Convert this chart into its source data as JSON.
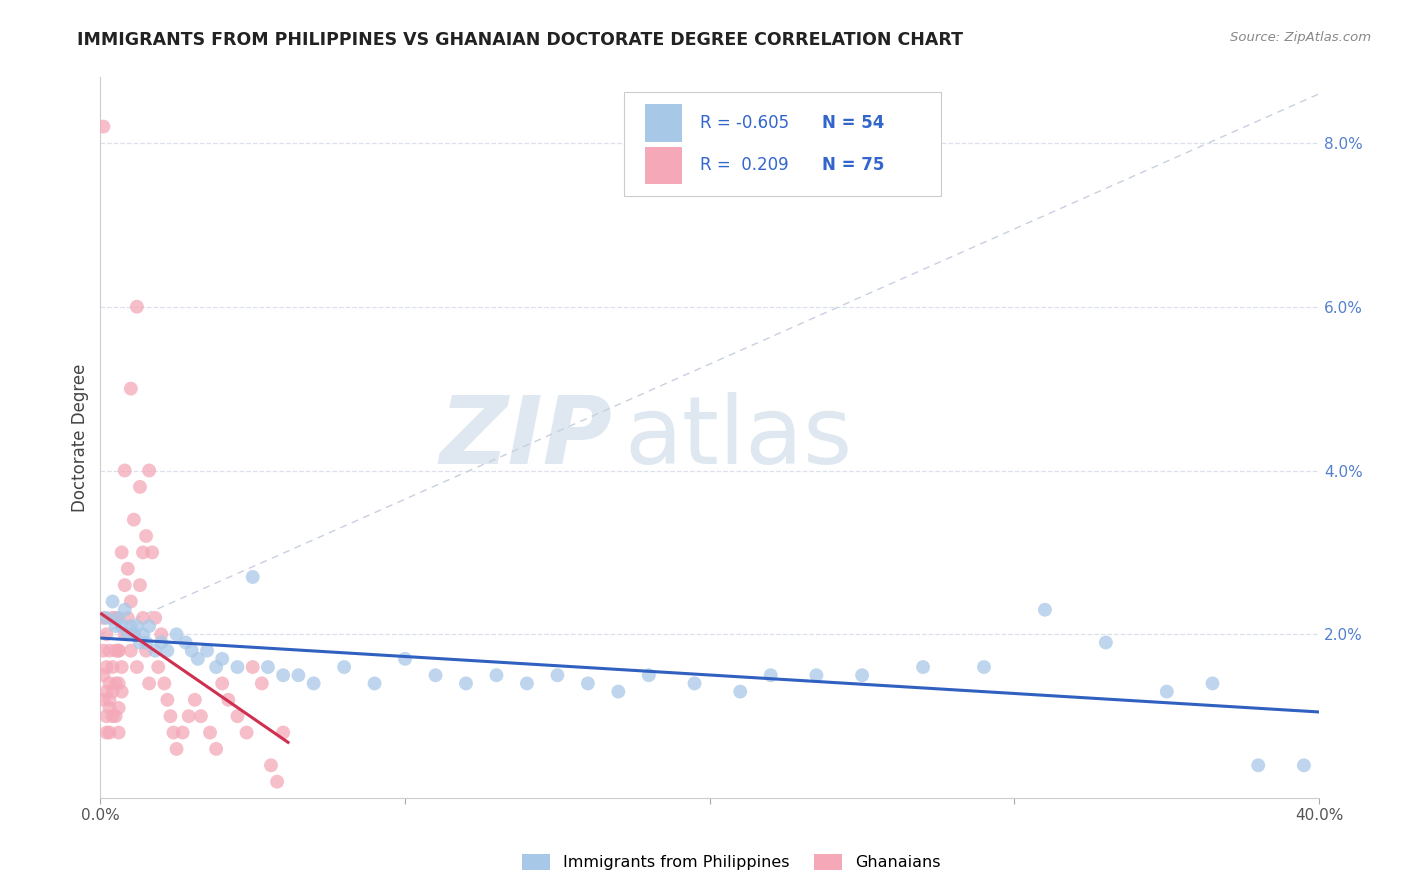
{
  "title": "IMMIGRANTS FROM PHILIPPINES VS GHANAIAN DOCTORATE DEGREE CORRELATION CHART",
  "source": "Source: ZipAtlas.com",
  "ylabel": "Doctorate Degree",
  "xlim": [
    0.0,
    0.4
  ],
  "ylim": [
    0.0,
    0.088
  ],
  "y_ticks_right": [
    0.0,
    0.02,
    0.04,
    0.06,
    0.08
  ],
  "y_tick_labels_right": [
    "",
    "2.0%",
    "4.0%",
    "6.0%",
    "8.0%"
  ],
  "blue_R": "-0.605",
  "blue_N": "54",
  "pink_R": "0.209",
  "pink_N": "75",
  "blue_color": "#a8c8e8",
  "pink_color": "#f4a8b8",
  "blue_line_color": "#3060c0",
  "pink_line_color": "#d03050",
  "dashed_line_color": "#c8d0e0",
  "grid_color": "#dce0ea",
  "watermark_zip": "ZIP",
  "watermark_atlas": "atlas",
  "legend_label_blue": "Immigrants from Philippines",
  "legend_label_pink": "Ghanaians",
  "blue_scatter_x": [
    0.002,
    0.004,
    0.005,
    0.006,
    0.007,
    0.008,
    0.009,
    0.01,
    0.011,
    0.012,
    0.013,
    0.014,
    0.015,
    0.016,
    0.018,
    0.02,
    0.022,
    0.025,
    0.028,
    0.03,
    0.032,
    0.035,
    0.038,
    0.04,
    0.045,
    0.05,
    0.055,
    0.06,
    0.065,
    0.07,
    0.08,
    0.09,
    0.1,
    0.11,
    0.12,
    0.13,
    0.14,
    0.15,
    0.16,
    0.17,
    0.18,
    0.195,
    0.21,
    0.22,
    0.235,
    0.25,
    0.27,
    0.29,
    0.31,
    0.33,
    0.35,
    0.365,
    0.38,
    0.395
  ],
  "blue_scatter_y": [
    0.022,
    0.024,
    0.021,
    0.022,
    0.021,
    0.023,
    0.02,
    0.021,
    0.02,
    0.021,
    0.019,
    0.02,
    0.019,
    0.021,
    0.018,
    0.019,
    0.018,
    0.02,
    0.019,
    0.018,
    0.017,
    0.018,
    0.016,
    0.017,
    0.016,
    0.027,
    0.016,
    0.015,
    0.015,
    0.014,
    0.016,
    0.014,
    0.017,
    0.015,
    0.014,
    0.015,
    0.014,
    0.015,
    0.014,
    0.013,
    0.015,
    0.014,
    0.013,
    0.015,
    0.015,
    0.015,
    0.016,
    0.016,
    0.023,
    0.019,
    0.013,
    0.014,
    0.004,
    0.004
  ],
  "pink_scatter_x": [
    0.001,
    0.001,
    0.001,
    0.001,
    0.001,
    0.002,
    0.002,
    0.002,
    0.002,
    0.003,
    0.003,
    0.003,
    0.003,
    0.004,
    0.004,
    0.004,
    0.004,
    0.005,
    0.005,
    0.005,
    0.006,
    0.006,
    0.006,
    0.006,
    0.007,
    0.007,
    0.007,
    0.008,
    0.008,
    0.008,
    0.009,
    0.009,
    0.01,
    0.01,
    0.01,
    0.011,
    0.011,
    0.012,
    0.012,
    0.013,
    0.013,
    0.014,
    0.014,
    0.015,
    0.015,
    0.016,
    0.016,
    0.017,
    0.018,
    0.019,
    0.02,
    0.021,
    0.022,
    0.023,
    0.024,
    0.025,
    0.027,
    0.029,
    0.031,
    0.033,
    0.036,
    0.038,
    0.04,
    0.042,
    0.045,
    0.048,
    0.05,
    0.053,
    0.056,
    0.058,
    0.005,
    0.006,
    0.003,
    0.002,
    0.06
  ],
  "pink_scatter_y": [
    0.082,
    0.022,
    0.018,
    0.015,
    0.012,
    0.02,
    0.016,
    0.013,
    0.01,
    0.018,
    0.014,
    0.011,
    0.008,
    0.022,
    0.016,
    0.013,
    0.01,
    0.018,
    0.014,
    0.01,
    0.018,
    0.014,
    0.011,
    0.008,
    0.016,
    0.013,
    0.03,
    0.04,
    0.026,
    0.02,
    0.028,
    0.022,
    0.05,
    0.024,
    0.018,
    0.034,
    0.02,
    0.06,
    0.016,
    0.026,
    0.038,
    0.03,
    0.022,
    0.032,
    0.018,
    0.04,
    0.014,
    0.03,
    0.022,
    0.016,
    0.02,
    0.014,
    0.012,
    0.01,
    0.008,
    0.006,
    0.008,
    0.01,
    0.012,
    0.01,
    0.008,
    0.006,
    0.014,
    0.012,
    0.01,
    0.008,
    0.016,
    0.014,
    0.004,
    0.002,
    0.022,
    0.018,
    0.012,
    0.008,
    0.008
  ]
}
